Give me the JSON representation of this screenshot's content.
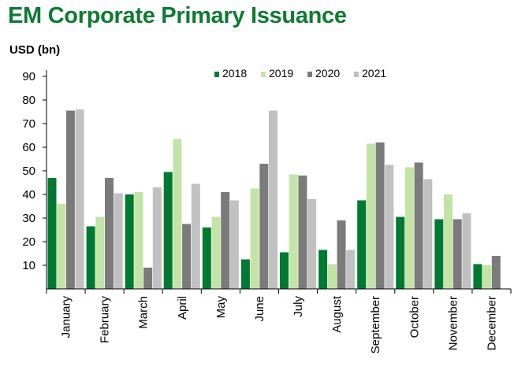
{
  "chart_data": {
    "type": "bar",
    "title": "EM Corporate Primary Issuance",
    "ylabel": "USD (bn)",
    "xlabel": "",
    "ylim": [
      0,
      90
    ],
    "yticks": [
      10,
      20,
      30,
      40,
      50,
      60,
      70,
      80,
      90
    ],
    "grid": false,
    "legend_position": "top",
    "categories": [
      "January",
      "February",
      "March",
      "April",
      "May",
      "June",
      "July",
      "August",
      "September",
      "October",
      "November",
      "December"
    ],
    "series": [
      {
        "name": "2018",
        "color": "#007a33",
        "values": [
          47,
          26.5,
          40,
          49.5,
          26,
          12.5,
          15.5,
          16.5,
          37.5,
          30.5,
          29.5,
          10.5
        ]
      },
      {
        "name": "2019",
        "color": "#c4e3a6",
        "values": [
          36,
          30.5,
          41,
          63.5,
          30.5,
          42.5,
          48.5,
          10.5,
          61.5,
          51.5,
          40,
          10
        ]
      },
      {
        "name": "2020",
        "color": "#7b7b7b",
        "values": [
          75.5,
          47,
          9,
          27.5,
          41,
          53,
          48,
          29,
          62,
          53.5,
          29.5,
          14
        ]
      },
      {
        "name": "2021",
        "color": "#c1c1c1",
        "values": [
          76,
          40.5,
          43,
          44.5,
          37.5,
          75.5,
          38,
          16.5,
          52.5,
          46.5,
          32,
          null
        ]
      }
    ]
  }
}
